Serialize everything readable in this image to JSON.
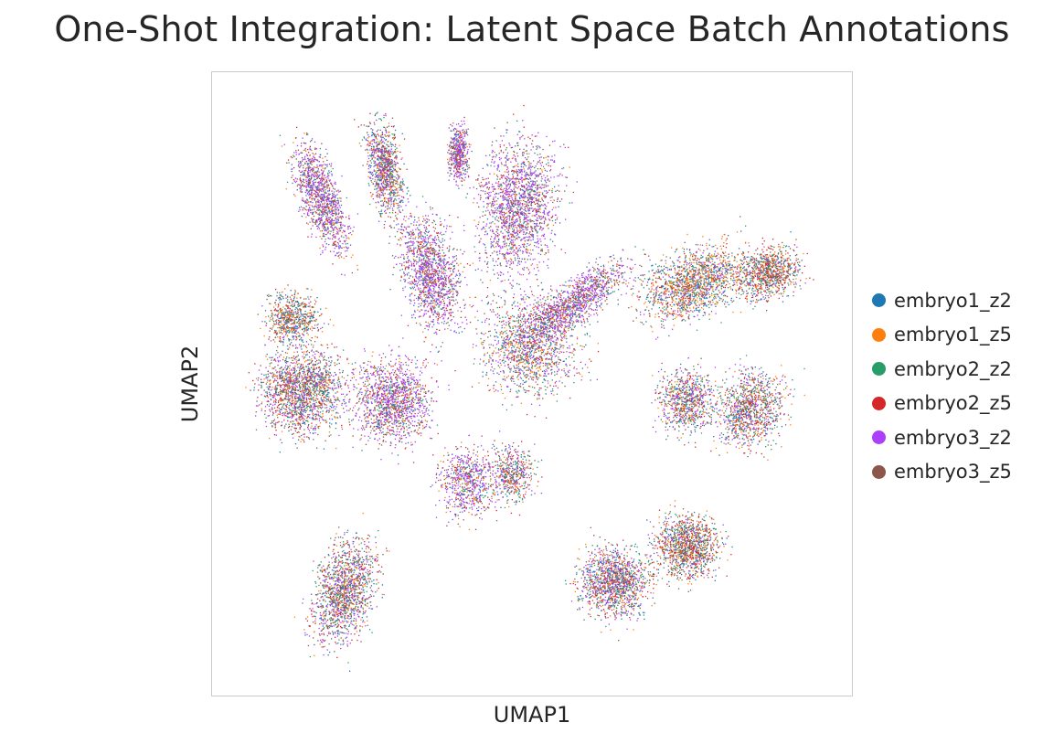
{
  "chart_data": {
    "type": "scatter",
    "title": "One-Shot Integration: Latent Space Batch Annotations",
    "xlabel": "UMAP1",
    "ylabel": "UMAP2",
    "grid": false,
    "legend_position": "right",
    "series": [
      {
        "name": "embryo1_z2",
        "color": "#1f77b4"
      },
      {
        "name": "embryo1_z5",
        "color": "#ff7f0e"
      },
      {
        "name": "embryo2_z2",
        "color": "#279e68"
      },
      {
        "name": "embryo2_z5",
        "color": "#d62728"
      },
      {
        "name": "embryo3_z2",
        "color": "#aa40fc"
      },
      {
        "name": "embryo3_z5",
        "color": "#8c564b"
      }
    ]
  }
}
